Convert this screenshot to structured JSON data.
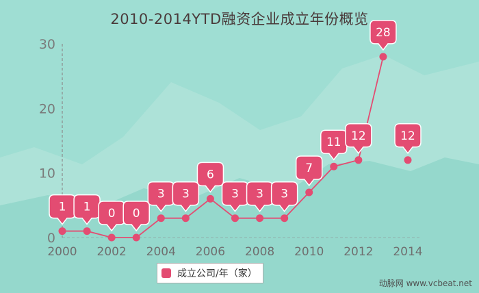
{
  "title": "2010-2014YTD融资企业成立年份概览",
  "watermark": "动脉网 www.vcbeat.net",
  "colors": {
    "series": "#e34c72",
    "background": "#9fded3",
    "axis": "#8c8c8c"
  },
  "chart_data": {
    "type": "line",
    "title": "2010-2014YTD融资企业成立年份概览",
    "x": [
      2000,
      2001,
      2002,
      2003,
      2004,
      2005,
      2006,
      2007,
      2008,
      2009,
      2010,
      2011,
      2012,
      2013,
      2014
    ],
    "series": [
      {
        "name": "成立公司/年（家）",
        "values": [
          1,
          1,
          0,
          0,
          3,
          3,
          6,
          3,
          3,
          3,
          7,
          11,
          12,
          28,
          12
        ]
      }
    ],
    "x_ticks": [
      "2000",
      "2002",
      "2004",
      "2006",
      "2008",
      "2010",
      "2012",
      "2014"
    ],
    "y_ticks": [
      "0",
      "10",
      "20",
      "30"
    ],
    "ylim": [
      0,
      30
    ],
    "legend": "bottom-center",
    "grid": false
  }
}
